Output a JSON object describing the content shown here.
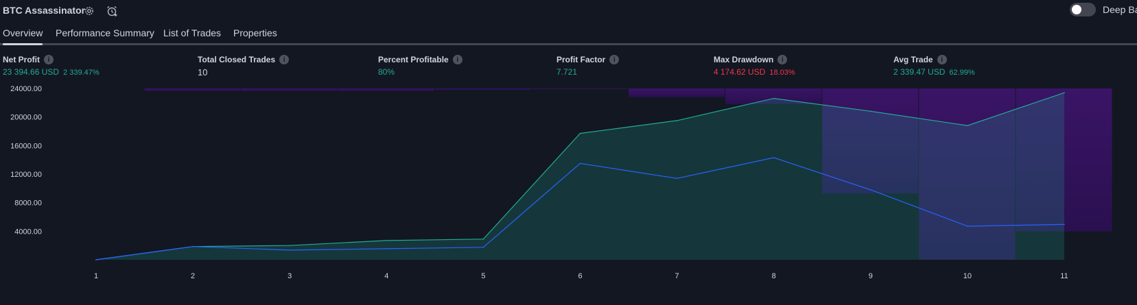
{
  "header": {
    "title": "BTC Assassinator",
    "toggle_label": "Deep Backtesting",
    "toggle_on": false
  },
  "tabs": [
    {
      "label": "Overview",
      "active": true
    },
    {
      "label": "Performance Summary",
      "active": false
    },
    {
      "label": "List of Trades",
      "active": false
    },
    {
      "label": "Properties",
      "active": false
    }
  ],
  "metrics": [
    {
      "label": "Net Profit",
      "value": "23 394.66 USD",
      "sub": "2 339.47%",
      "tone": "green"
    },
    {
      "label": "Total Closed Trades",
      "value": "10",
      "sub": "",
      "tone": "white"
    },
    {
      "label": "Percent Profitable",
      "value": "80%",
      "sub": "",
      "tone": "green"
    },
    {
      "label": "Profit Factor",
      "value": "7.721",
      "sub": "",
      "tone": "green"
    },
    {
      "label": "Max Drawdown",
      "value": "4 174.62 USD",
      "sub": "18.03%",
      "tone": "red"
    },
    {
      "label": "Avg Trade",
      "value": "2 339.47 USD",
      "sub": "62.99%",
      "tone": "green"
    }
  ],
  "chart_data": {
    "type": "area",
    "categories": [
      "1",
      "2",
      "3",
      "4",
      "5",
      "6",
      "7",
      "8",
      "9",
      "10",
      "11"
    ],
    "x": [
      1,
      2,
      3,
      4,
      5,
      6,
      7,
      8,
      9,
      10,
      11
    ],
    "ylim": [
      0,
      24000
    ],
    "ytick_labels": [
      "4000.00",
      "8000.00",
      "12000.00",
      "16000.00",
      "20000.00",
      "24000.00"
    ],
    "series": [
      {
        "kind": "area",
        "color": "#22ab94",
        "values": [
          0,
          1850,
          2000,
          2700,
          2900,
          17700,
          19500,
          22600,
          20800,
          18800,
          23400
        ]
      },
      {
        "kind": "line",
        "color": "#2962ff",
        "values": [
          0,
          1850,
          1350,
          1550,
          1750,
          13500,
          11400,
          14300,
          9800,
          4700,
          4950
        ]
      }
    ],
    "drawdown_bars": [
      {
        "trade": 1,
        "value": 0
      },
      {
        "trade": 2,
        "value": 350
      },
      {
        "trade": 3,
        "value": 350
      },
      {
        "trade": 4,
        "value": 350
      },
      {
        "trade": 5,
        "value": 200
      },
      {
        "trade": 6,
        "value": 100
      },
      {
        "trade": 7,
        "value": 1200
      },
      {
        "trade": 8,
        "value": 2200
      },
      {
        "trade": 9,
        "value": 14700
      },
      {
        "trade": 10,
        "value": 24000
      },
      {
        "trade": 11,
        "value": 20000
      }
    ],
    "colors": {
      "drawdown": "#4a1a7a",
      "label": "#d1d4dc"
    }
  }
}
